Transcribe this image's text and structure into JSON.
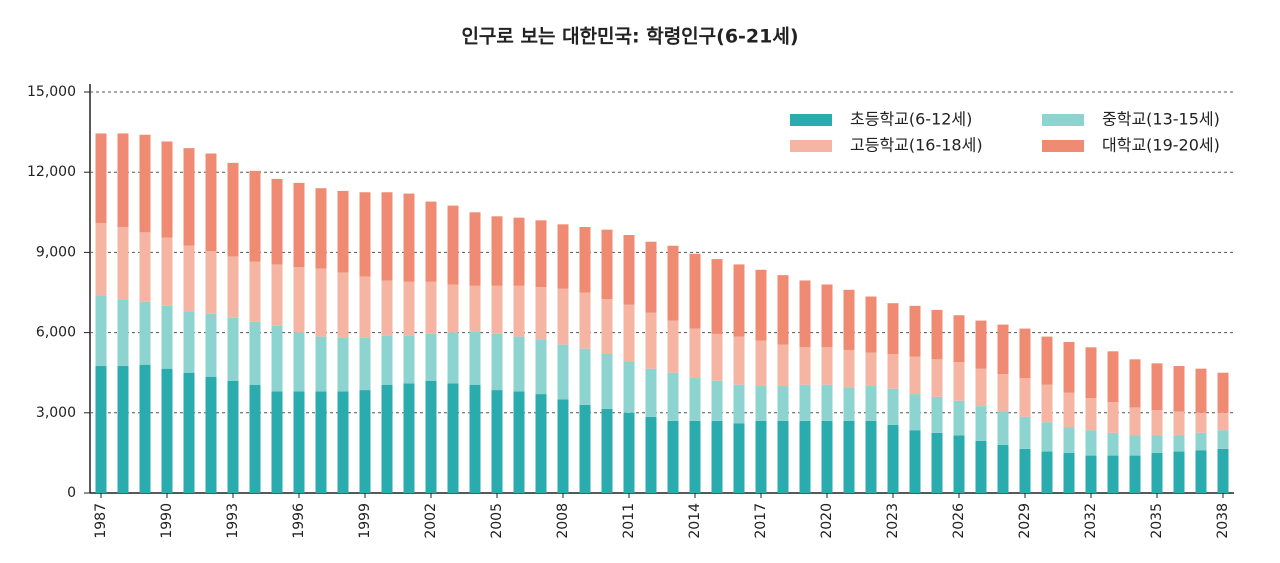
{
  "chart_data": {
    "type": "stacked_bar",
    "title": "인구로 보는 대한민국: 학령인구(6-21세)",
    "categories": [
      "1987",
      null,
      null,
      "1990",
      null,
      null,
      "1993",
      null,
      null,
      "1996",
      null,
      null,
      "1999",
      null,
      null,
      "2002",
      null,
      null,
      "2005",
      null,
      null,
      "2008",
      null,
      null,
      "2011",
      null,
      null,
      "2014",
      null,
      null,
      "2017",
      null,
      null,
      "2020",
      null,
      null,
      "2023",
      null,
      null,
      "2026",
      null,
      null,
      "2029",
      null,
      null,
      "2032",
      null,
      null,
      "2035",
      null,
      null,
      "2038"
    ],
    "series": [
      {
        "name": "초등학교(6-12세)",
        "color": "#2aacae",
        "values": [
          4750,
          4750,
          4800,
          4650,
          4500,
          4350,
          4200,
          4050,
          3800,
          3800,
          3800,
          3800,
          3850,
          4050,
          4100,
          4200,
          4100,
          4050,
          3850,
          3800,
          3700,
          3500,
          3300,
          3150,
          3000,
          2850,
          2700,
          2700,
          2700,
          2600,
          2700,
          2700,
          2700,
          2700,
          2700,
          2700,
          2550,
          2350,
          2250,
          2150,
          1950,
          1800,
          1650,
          1550,
          1500,
          1400,
          1400,
          1400,
          1500,
          1550,
          1600,
          1650
        ]
      },
      {
        "name": "중학교(13-15세)",
        "color": "#8dd3cf",
        "values": [
          2650,
          2500,
          2350,
          2350,
          2300,
          2350,
          2350,
          2350,
          2450,
          2200,
          2050,
          2000,
          1950,
          1850,
          1800,
          1750,
          1900,
          2000,
          2100,
          2050,
          2050,
          2050,
          2100,
          2050,
          1900,
          1800,
          1800,
          1600,
          1500,
          1450,
          1300,
          1300,
          1350,
          1350,
          1250,
          1300,
          1350,
          1350,
          1350,
          1300,
          1300,
          1250,
          1200,
          1100,
          950,
          950,
          850,
          750,
          650,
          600,
          650,
          700
        ]
      },
      {
        "name": "고등학교(16-18세)",
        "color": "#f6b5a3",
        "values": [
          2700,
          2700,
          2600,
          2550,
          2450,
          2350,
          2300,
          2250,
          2300,
          2450,
          2550,
          2450,
          2300,
          2050,
          2000,
          1950,
          1800,
          1700,
          1800,
          1900,
          1950,
          2100,
          2100,
          2050,
          2150,
          2100,
          1950,
          1850,
          1750,
          1800,
          1700,
          1550,
          1400,
          1400,
          1400,
          1250,
          1300,
          1400,
          1400,
          1450,
          1400,
          1400,
          1450,
          1400,
          1300,
          1200,
          1150,
          1050,
          950,
          900,
          750,
          650
        ]
      },
      {
        "name": "대학교(19-20세)",
        "color": "#ef8b73",
        "values": [
          3350,
          3500,
          3650,
          3600,
          3650,
          3650,
          3500,
          3400,
          3200,
          3150,
          3000,
          3050,
          3150,
          3300,
          3300,
          3000,
          2950,
          2750,
          2600,
          2550,
          2500,
          2400,
          2450,
          2600,
          2600,
          2650,
          2800,
          2800,
          2800,
          2700,
          2650,
          2600,
          2500,
          2350,
          2250,
          2100,
          1900,
          1900,
          1850,
          1750,
          1800,
          1850,
          1850,
          1800,
          1900,
          1900,
          1900,
          1800,
          1750,
          1700,
          1650,
          1500
        ]
      }
    ],
    "ylim": [
      0,
      15000
    ],
    "yticks": [
      0,
      {
        "value": 3000,
        "label": "3,000"
      },
      {
        "value": 6000,
        "label": "6,000"
      },
      {
        "value": 9000,
        "label": "9,000"
      },
      {
        "value": 12000,
        "label": "12,000"
      },
      {
        "value": 15000,
        "label": "15,000"
      }
    ],
    "grid": true,
    "legend": "upper right"
  }
}
